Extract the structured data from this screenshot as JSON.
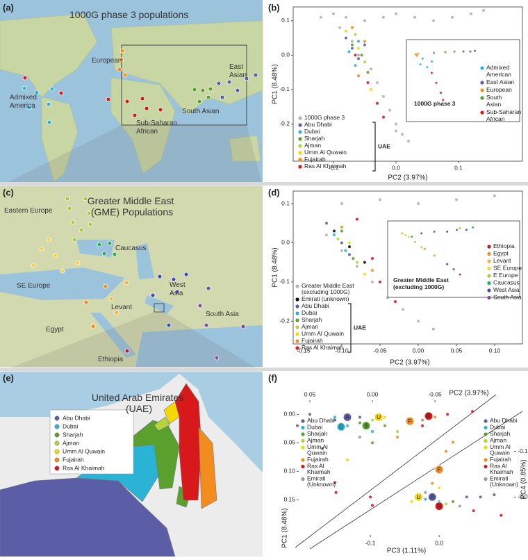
{
  "panels": [
    "(a)",
    "(b)",
    "(c)",
    "(d)",
    "(e)",
    "(f)"
  ],
  "maps": [
    {
      "title": "1000G phase 3 populations",
      "labels": [
        "European",
        "East Asian",
        "Admixed America",
        "Sub-Saharan African",
        "South Asian"
      ]
    },
    {
      "title": "Greater Middle East (GME) Populations",
      "labels": [
        "Eastern Europe",
        "Caucasus",
        "SE Europe",
        "Levant",
        "West Asia",
        "Egypt",
        "South Asia",
        "Ethiopia"
      ]
    },
    {
      "title": "United Arab Emirates (UAE)",
      "legend": [
        {
          "name": "Abu Dhabi",
          "color": "#5b5ea6"
        },
        {
          "name": "Dubai",
          "color": "#2bb3d6"
        },
        {
          "name": "Sharjah",
          "color": "#5aa02c"
        },
        {
          "name": "Ajman",
          "color": "#b5d33d"
        },
        {
          "name": "Umm Al Quwain",
          "color": "#f5d800"
        },
        {
          "name": "Fujairah",
          "color": "#f28c1e"
        },
        {
          "name": "Ras Al Khaimah",
          "color": "#d7191c"
        }
      ]
    }
  ],
  "chart_data": [
    {
      "type": "scatter",
      "xlabel": "PC2 (3.97%)",
      "ylabel": "PC1 (8.48%)",
      "legend_group": "UAE",
      "xlim": [
        -0.1644,
        0.2022
      ],
      "ylim": [
        -0.308,
        0.14
      ],
      "xticks": [
        -0.1,
        {
          "value": 0,
          "label": "0.0"
        },
        0.1
      ],
      "yticks": [
        0.1,
        {
          "value": 0,
          "label": "0.0"
        },
        -0.1,
        -0.2
      ],
      "series": [
        {
          "name": "1000G phase 3",
          "color": "#b3b3b3",
          "x": [
            -0.12,
            -0.1,
            -0.08,
            -0.05,
            -0.02,
            0.0,
            0.03,
            0.06,
            0.09,
            0.12,
            0.14,
            -0.09,
            -0.07,
            -0.06,
            -0.04,
            -0.03,
            -0.02,
            -0.01,
            0.0,
            0.01,
            0.02,
            0.0
          ],
          "y": [
            0.11,
            0.12,
            0.11,
            0.1,
            0.11,
            0.12,
            0.11,
            0.1,
            0.11,
            0.12,
            0.13,
            0.08,
            0.04,
            0.0,
            -0.04,
            -0.08,
            -0.12,
            -0.16,
            -0.2,
            -0.23,
            -0.25,
            -0.22
          ]
        },
        {
          "name": "Abu Dhabi",
          "color": "#5b5ea6",
          "x": [
            -0.08,
            -0.07,
            -0.06,
            -0.05
          ],
          "y": [
            0.05,
            0.02,
            -0.01,
            0.03
          ]
        },
        {
          "name": "Dubai",
          "color": "#2bb3d6",
          "x": [
            -0.075,
            -0.06,
            -0.065
          ],
          "y": [
            0.01,
            0.04,
            -0.03
          ]
        },
        {
          "name": "Sharjah",
          "color": "#5aa02c",
          "x": [
            -0.07,
            -0.055,
            -0.045
          ],
          "y": [
            0.03,
            0.0,
            -0.05
          ]
        },
        {
          "name": "Ajman",
          "color": "#b5d33d",
          "x": [
            -0.065,
            -0.05
          ],
          "y": [
            0.06,
            -0.02
          ]
        },
        {
          "name": "Umm Al Quwain",
          "color": "#f5d800",
          "x": [
            -0.06,
            -0.08,
            -0.04
          ],
          "y": [
            0.02,
            0.07,
            -0.1
          ]
        },
        {
          "name": "Fujairah",
          "color": "#f28c1e",
          "x": [
            -0.07,
            -0.05,
            -0.06
          ],
          "y": [
            0.08,
            0.04,
            -0.06
          ]
        },
        {
          "name": "Ras Al Khaimah",
          "color": "#d7191c",
          "x": [
            -0.065,
            -0.045,
            -0.02,
            -0.03
          ],
          "y": [
            0.0,
            -0.08,
            -0.18,
            -0.14
          ]
        }
      ]
    },
    {
      "type": "scatter",
      "label": "1000G phase 3",
      "xlim": [
        -0.15,
        0.15
      ],
      "ylim": [
        -0.3,
        0.1
      ],
      "series": [
        {
          "name": "Admixed American",
          "color": "#2bb3d6",
          "x": [
            -0.1,
            -0.08,
            -0.11,
            -0.06
          ],
          "y": [
            0.02,
            -0.04,
            -0.02,
            0.0
          ]
        },
        {
          "name": "East Asian",
          "color": "#5b5ea6",
          "x": [
            0.08,
            0.11,
            0.13
          ],
          "y": [
            0.07,
            0.07,
            0.075
          ]
        },
        {
          "name": "European",
          "color": "#f28c1e",
          "x": [
            -0.13,
            -0.12,
            -0.125
          ],
          "y": [
            0.05,
            0.055,
            0.04
          ]
        },
        {
          "name": "South Asian",
          "color": "#5aa02c",
          "x": [
            -0.05,
            0.0,
            0.04
          ],
          "y": [
            0.06,
            0.065,
            0.07
          ]
        },
        {
          "name": "Sub-Saharan African",
          "color": "#d7191c",
          "x": [
            -0.06,
            -0.04,
            -0.02,
            -0.01
          ],
          "y": [
            -0.08,
            -0.15,
            -0.22,
            -0.27
          ]
        }
      ]
    },
    {
      "type": "scatter",
      "xlabel": "PC2 (3.97%)",
      "ylabel": "PC1 (8.48%)",
      "legend_group": "UAE",
      "xlim": [
        -0.1636,
        0.1364
      ],
      "ylim": [
        -0.258,
        0.132
      ],
      "xticks": [
        -0.15,
        {
          "value": -0.1,
          "label": "-0.10"
        },
        -0.05,
        {
          "value": 0,
          "label": "0.00"
        },
        0.05,
        {
          "value": 0.1,
          "label": "0.10"
        }
      ],
      "yticks": [
        0.1,
        {
          "value": 0,
          "label": "0.0"
        },
        -0.1,
        -0.2
      ],
      "series": [
        {
          "name": "Greater Middle East (excluding 1000G)",
          "color": "#b3b3b3",
          "x": [
            -0.1,
            -0.05,
            0.0,
            0.05,
            0.1,
            -0.12,
            -0.1,
            -0.08,
            -0.06,
            -0.04,
            -0.02,
            0.0,
            0.02
          ],
          "y": [
            0.1,
            0.11,
            0.1,
            0.11,
            0.12,
            0.02,
            -0.02,
            -0.06,
            -0.1,
            -0.14,
            -0.17,
            -0.2,
            -0.22
          ]
        },
        {
          "name": "Emirati (unknown)",
          "color": "#111111",
          "x": [
            -0.11,
            -0.09,
            -0.07
          ],
          "y": [
            0.03,
            -0.01,
            -0.05
          ]
        },
        {
          "name": "Abu Dhabi",
          "color": "#5b5ea6",
          "x": [
            -0.12,
            -0.1,
            -0.09
          ],
          "y": [
            0.05,
            0.0,
            -0.03
          ]
        },
        {
          "name": "Dubai",
          "color": "#2bb3d6",
          "x": [
            -0.11,
            -0.095
          ],
          "y": [
            0.02,
            -0.02
          ]
        },
        {
          "name": "Sharjah",
          "color": "#5aa02c",
          "x": [
            -0.1,
            -0.085
          ],
          "y": [
            0.03,
            -0.04
          ]
        },
        {
          "name": "Ajman",
          "color": "#b5d33d",
          "x": [
            -0.105,
            -0.08
          ],
          "y": [
            0.01,
            -0.05
          ]
        },
        {
          "name": "Umm Al Quwain",
          "color": "#f5d800",
          "x": [
            -0.09,
            -0.07
          ],
          "y": [
            0.0,
            -0.08
          ]
        },
        {
          "name": "Fujairah",
          "color": "#f28c1e",
          "x": [
            -0.1,
            -0.06
          ],
          "y": [
            0.04,
            -0.07
          ]
        },
        {
          "name": "Ras Al Khaimah",
          "color": "#d7191c",
          "x": [
            -0.08,
            -0.05,
            -0.03,
            -0.06
          ],
          "y": [
            0.06,
            -0.1,
            -0.15,
            -0.04
          ]
        }
      ]
    },
    {
      "type": "scatter",
      "label": "Greater Middle East (excluding 1000G)",
      "xlim": [
        -0.15,
        0.12
      ],
      "ylim": [
        -0.22,
        0.08
      ],
      "series": [
        {
          "name": "Ethiopia",
          "color": "#b22222",
          "x": [
            0.02,
            0.04,
            0.06
          ],
          "y": [
            -0.14,
            -0.17,
            -0.2
          ]
        },
        {
          "name": "Egypt",
          "color": "#f28c1e",
          "x": [
            -0.05,
            -0.02
          ],
          "y": [
            -0.05,
            -0.09
          ]
        },
        {
          "name": "Levant",
          "color": "#f5b041",
          "x": [
            -0.08,
            -0.06
          ],
          "y": [
            -0.01,
            -0.04
          ]
        },
        {
          "name": "SE Europe",
          "color": "#f4d03f",
          "x": [
            -0.11,
            -0.1
          ],
          "y": [
            0.03,
            0.02
          ]
        },
        {
          "name": "E Europe",
          "color": "#a9cc3c",
          "x": [
            -0.12,
            0.06
          ],
          "y": [
            0.04,
            0.07
          ]
        },
        {
          "name": "Caucasus",
          "color": "#27ae60",
          "x": [
            -0.09,
            0.1
          ],
          "y": [
            0.02,
            0.075
          ]
        },
        {
          "name": "West Asia",
          "color": "#3b4cc0",
          "x": [
            -0.06,
            0.02,
            0.08
          ],
          "y": [
            0.04,
            0.05,
            0.06
          ]
        },
        {
          "name": "South Asia",
          "color": "#7b4fa0",
          "x": [
            -0.02,
            0.05
          ],
          "y": [
            0.05,
            0.06
          ]
        }
      ]
    },
    {
      "type": "scatter",
      "xlabel": "PC2 (3.97%)",
      "ylabel": "PC1 (8.48%)",
      "xlim": [
        0.0589,
        -0.1022
      ],
      "ylim": [
        0.19,
        -0.02
      ],
      "xticks": [
        0.05,
        {
          "value": 0,
          "label": "0.00"
        },
        -0.05
      ],
      "yticks": [
        {
          "value": 0,
          "label": "0.00"
        },
        0.05,
        {
          "value": 0.1,
          "label": "0.10"
        },
        0.15
      ],
      "series": [
        {
          "name": "Abu Dhabi",
          "color": "#5b5ea6",
          "x": [
            0.05,
            0.03,
            0.01,
            0.04,
            0.06
          ],
          "y": [
            0.0,
            0.01,
            0.005,
            0.06,
            0.02
          ]
        },
        {
          "name": "Dubai",
          "color": "#2bb3d6",
          "x": [
            0.02,
            0.03,
            0.0
          ],
          "y": [
            0.02,
            0.005,
            0.03
          ]
        },
        {
          "name": "Sharjah",
          "color": "#5aa02c",
          "x": [
            0.01,
            -0.01,
            0.0
          ],
          "y": [
            0.015,
            0.02,
            0.05
          ]
        },
        {
          "name": "Ajman",
          "color": "#b5d33d",
          "x": [
            0.0,
            -0.02
          ],
          "y": [
            0.01,
            0.03
          ]
        },
        {
          "name": "Umm Al Quwain",
          "color": "#f5d800",
          "x": [
            -0.01,
            0.02
          ],
          "y": [
            0.005,
            0.08
          ]
        },
        {
          "name": "Fujairah",
          "color": "#f28c1e",
          "x": [
            -0.03,
            -0.05,
            -0.02
          ],
          "y": [
            0.01,
            0.005,
            0.04
          ]
        },
        {
          "name": "Ras Al Khaimah",
          "color": "#d7191c",
          "x": [
            -0.06,
            -0.08,
            -0.04,
            0.03,
            0.0
          ],
          "y": [
            0.0,
            -0.005,
            0.02,
            0.12,
            0.16
          ]
        },
        {
          "name": "Emirati (Unknown)",
          "color": "#999999",
          "x": [
            0.01,
            -0.04
          ],
          "y": [
            0.04,
            0.01
          ]
        }
      ],
      "annotations": [
        {
          "text": "A",
          "x": 0.02,
          "y": 0.005,
          "color": "#5b5ea6"
        },
        {
          "text": "D",
          "x": 0.025,
          "y": 0.022,
          "color": "#2bb3d6"
        },
        {
          "text": "S",
          "x": 0.005,
          "y": 0.02,
          "color": "#5aa02c"
        },
        {
          "text": "U",
          "x": -0.005,
          "y": 0.005,
          "color": "#f5d800"
        },
        {
          "text": "F",
          "x": -0.03,
          "y": 0.012,
          "color": "#f28c1e"
        },
        {
          "text": "R",
          "x": -0.045,
          "y": 0.003,
          "color": "#d7191c"
        }
      ]
    },
    {
      "type": "scatter",
      "xlabel": "PC3 (1.11%)",
      "ylabel": "PC4 (0.85%)",
      "xlim": [
        -0.194,
        0.121
      ],
      "ylim": [
        0.045,
        -0.145
      ],
      "xticks": [
        -0.1,
        {
          "value": 0,
          "label": "0.0"
        }
      ],
      "yticks": [
        -0.1,
        {
          "value": 0,
          "label": "-0.0"
        }
      ],
      "series": [
        {
          "name": "Abu Dhabi",
          "color": "#5b5ea6",
          "x": [
            0.04,
            0.06,
            0.08
          ],
          "y": [
            0.0,
            0.0,
            -0.005
          ]
        },
        {
          "name": "Dubai",
          "color": "#2bb3d6",
          "x": [
            -0.02,
            0.0
          ],
          "y": [
            0.005,
            0.01
          ]
        },
        {
          "name": "Sharjah",
          "color": "#5aa02c",
          "x": [
            -0.01,
            0.02
          ],
          "y": [
            -0.005,
            0.01
          ]
        },
        {
          "name": "Ajman",
          "color": "#b5d33d",
          "x": [
            -0.03,
            0.01
          ],
          "y": [
            0.0,
            0.015
          ]
        },
        {
          "name": "Umm Al Quwain",
          "color": "#f5d800",
          "x": [
            -0.04,
            0.0
          ],
          "y": [
            0.01,
            -0.02
          ]
        },
        {
          "name": "Fujairah",
          "color": "#f28c1e",
          "x": [
            0.0,
            0.01,
            0.02,
            -0.01
          ],
          "y": [
            -0.06,
            -0.1,
            -0.12,
            -0.03
          ]
        },
        {
          "name": "Ras Al Khaimah",
          "color": "#d7191c",
          "x": [
            -0.15,
            -0.1,
            0.05,
            0.09
          ],
          "y": [
            -0.01,
            0.0,
            0.03,
            0.04
          ]
        },
        {
          "name": "Emirati (Unknown)",
          "color": "#999999",
          "x": [
            -0.02,
            0.03
          ],
          "y": [
            -0.01,
            0.02
          ]
        }
      ],
      "annotations": [
        {
          "text": "F",
          "x": 0.0,
          "y": -0.06,
          "color": "#f28c1e"
        },
        {
          "text": "U",
          "x": -0.03,
          "y": 0.0,
          "color": "#f5d800"
        },
        {
          "text": "A",
          "x": -0.01,
          "y": 0.0,
          "color": "#5b5ea6"
        },
        {
          "text": "R",
          "x": 0.0,
          "y": 0.02,
          "color": "#d7191c"
        }
      ]
    }
  ]
}
